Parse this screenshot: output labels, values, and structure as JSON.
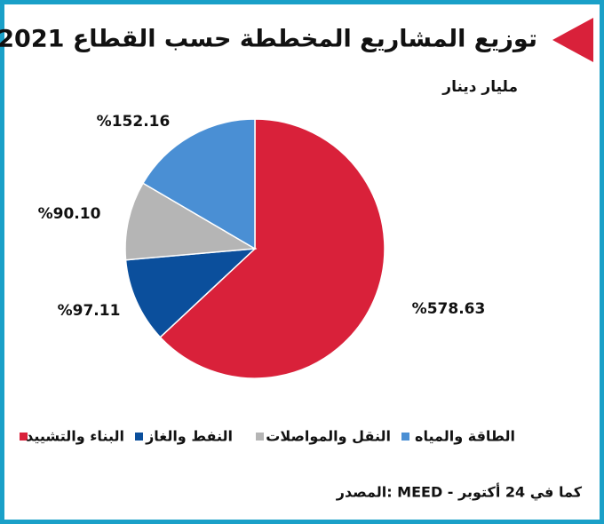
{
  "chart_data": {
    "type": "pie",
    "title": "2021 توزيع المشاريع المخططة حسب القطاع",
    "subtitle": "مليار دينار",
    "source": "المصدر: MEED - كما في 24 أكتوبر",
    "categories": [
      "البناء والتشييد",
      "النفط والغاز",
      "النقل والمواصلات",
      "الطاقة والمياه"
    ],
    "values": [
      578.63,
      97.11,
      90.1,
      152.16
    ],
    "value_labels": [
      "%578.63",
      "%97.11",
      "%90.10",
      "%152.16"
    ],
    "colors": [
      "#d9213a",
      "#0b4f9c",
      "#b5b5b5",
      "#4a8fd4"
    ]
  }
}
